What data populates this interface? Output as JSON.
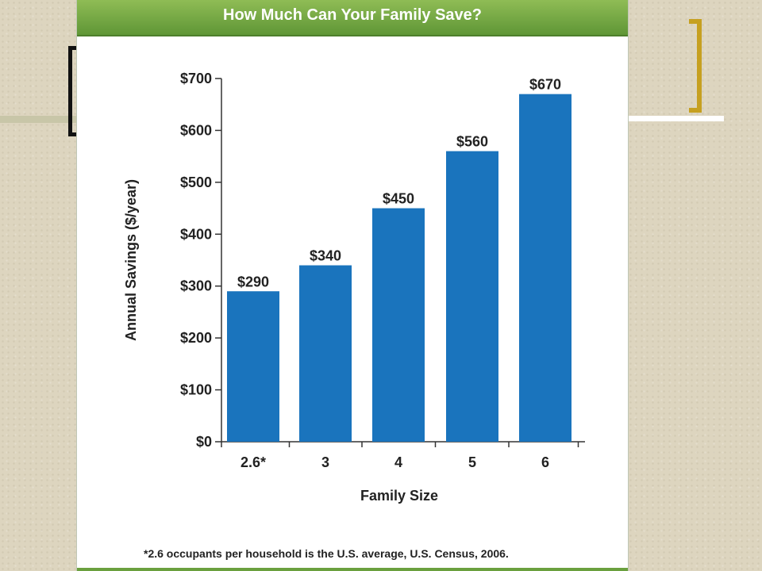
{
  "chart_data": {
    "type": "bar",
    "title": "How Much Can Your Family Save?",
    "categories": [
      "2.6*",
      "3",
      "4",
      "5",
      "6"
    ],
    "values": [
      290,
      340,
      450,
      560,
      670
    ],
    "data_labels": [
      "$290",
      "$340",
      "$450",
      "$560",
      "$670"
    ],
    "yticks": [
      "$0",
      "$100",
      "$200",
      "$300",
      "$400",
      "$500",
      "$600",
      "$700"
    ],
    "ylim": [
      0,
      700
    ],
    "xlabel": "Family Size",
    "ylabel": "Annual Savings ($/year)",
    "grid": false,
    "bar_color": "#1a74bd",
    "footnote": "*2.6 occupants per household is the U.S. average, U.S. Census, 2006."
  },
  "colors": {
    "header_green": "#6aa03e",
    "bracket_gold": "#c6a020",
    "background": "#ddd5bf"
  }
}
